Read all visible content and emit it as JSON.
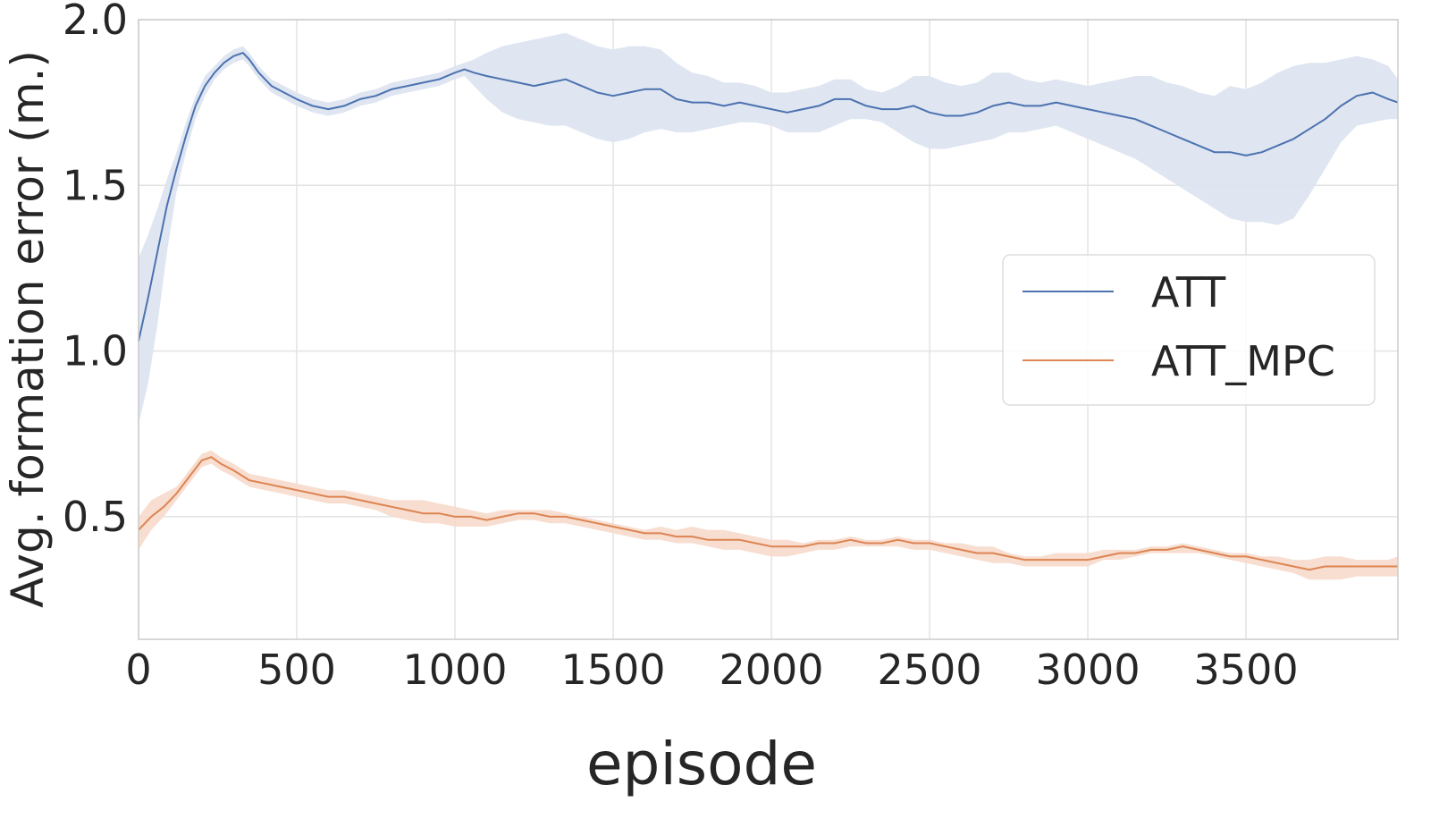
{
  "chart_data": {
    "type": "line",
    "xlabel": "episode",
    "ylabel": "Avg. formation error (m.)",
    "xlim": [
      0,
      3980
    ],
    "ylim": [
      0.13,
      2.0
    ],
    "x_ticks": [
      0,
      500,
      1000,
      1500,
      2000,
      2500,
      3000,
      3500
    ],
    "x_tick_labels": [
      "0",
      "500",
      "1000",
      "1500",
      "2000",
      "2500",
      "3000",
      "3500"
    ],
    "y_ticks": [
      0.5,
      1.0,
      1.5,
      2.0
    ],
    "y_tick_labels": [
      "0.5",
      "1.0",
      "1.5",
      "2.0"
    ],
    "grid": true,
    "legend_position": "right",
    "series": [
      {
        "name": "ATT",
        "color": "#4c72b0",
        "band_color": "#dbe3f0",
        "x": [
          0,
          30,
          60,
          90,
          120,
          150,
          180,
          210,
          240,
          270,
          300,
          330,
          350,
          380,
          420,
          460,
          500,
          550,
          600,
          650,
          700,
          750,
          800,
          850,
          900,
          950,
          1000,
          1030,
          1060,
          1100,
          1150,
          1200,
          1250,
          1300,
          1350,
          1400,
          1450,
          1500,
          1550,
          1600,
          1650,
          1700,
          1750,
          1800,
          1850,
          1900,
          1950,
          2000,
          2050,
          2100,
          2150,
          2200,
          2250,
          2300,
          2350,
          2400,
          2450,
          2500,
          2550,
          2600,
          2650,
          2700,
          2750,
          2800,
          2850,
          2900,
          2950,
          3000,
          3050,
          3100,
          3150,
          3200,
          3250,
          3300,
          3350,
          3400,
          3450,
          3500,
          3550,
          3600,
          3650,
          3700,
          3750,
          3800,
          3850,
          3900,
          3950,
          3980
        ],
        "y": [
          1.03,
          1.16,
          1.3,
          1.44,
          1.55,
          1.65,
          1.74,
          1.8,
          1.84,
          1.87,
          1.89,
          1.9,
          1.88,
          1.84,
          1.8,
          1.78,
          1.76,
          1.74,
          1.73,
          1.74,
          1.76,
          1.77,
          1.79,
          1.8,
          1.81,
          1.82,
          1.84,
          1.85,
          1.84,
          1.83,
          1.82,
          1.81,
          1.8,
          1.81,
          1.82,
          1.8,
          1.78,
          1.77,
          1.78,
          1.79,
          1.79,
          1.76,
          1.75,
          1.75,
          1.74,
          1.75,
          1.74,
          1.73,
          1.72,
          1.73,
          1.74,
          1.76,
          1.76,
          1.74,
          1.73,
          1.73,
          1.74,
          1.72,
          1.71,
          1.71,
          1.72,
          1.74,
          1.75,
          1.74,
          1.74,
          1.75,
          1.74,
          1.73,
          1.72,
          1.71,
          1.7,
          1.68,
          1.66,
          1.64,
          1.62,
          1.6,
          1.6,
          1.59,
          1.6,
          1.62,
          1.64,
          1.67,
          1.7,
          1.74,
          1.77,
          1.78,
          1.76,
          1.75
        ],
        "lower": [
          0.78,
          0.9,
          1.08,
          1.3,
          1.48,
          1.6,
          1.7,
          1.77,
          1.82,
          1.85,
          1.87,
          1.88,
          1.86,
          1.82,
          1.78,
          1.76,
          1.74,
          1.72,
          1.71,
          1.72,
          1.74,
          1.75,
          1.77,
          1.78,
          1.79,
          1.8,
          1.82,
          1.83,
          1.8,
          1.76,
          1.72,
          1.7,
          1.69,
          1.68,
          1.68,
          1.66,
          1.64,
          1.63,
          1.64,
          1.66,
          1.67,
          1.66,
          1.66,
          1.67,
          1.68,
          1.69,
          1.69,
          1.68,
          1.66,
          1.66,
          1.66,
          1.68,
          1.7,
          1.7,
          1.69,
          1.66,
          1.63,
          1.61,
          1.61,
          1.62,
          1.63,
          1.64,
          1.66,
          1.66,
          1.67,
          1.68,
          1.66,
          1.64,
          1.62,
          1.6,
          1.58,
          1.55,
          1.52,
          1.49,
          1.46,
          1.43,
          1.4,
          1.39,
          1.39,
          1.38,
          1.4,
          1.47,
          1.55,
          1.63,
          1.68,
          1.69,
          1.7,
          1.7
        ],
        "upper": [
          1.28,
          1.35,
          1.43,
          1.52,
          1.6,
          1.69,
          1.77,
          1.83,
          1.86,
          1.89,
          1.91,
          1.92,
          1.9,
          1.86,
          1.82,
          1.8,
          1.78,
          1.76,
          1.75,
          1.76,
          1.78,
          1.79,
          1.81,
          1.82,
          1.83,
          1.84,
          1.86,
          1.87,
          1.88,
          1.9,
          1.92,
          1.93,
          1.94,
          1.95,
          1.96,
          1.94,
          1.92,
          1.91,
          1.92,
          1.92,
          1.91,
          1.87,
          1.84,
          1.83,
          1.81,
          1.81,
          1.8,
          1.78,
          1.78,
          1.79,
          1.8,
          1.82,
          1.82,
          1.79,
          1.78,
          1.8,
          1.83,
          1.83,
          1.81,
          1.8,
          1.81,
          1.84,
          1.84,
          1.82,
          1.81,
          1.82,
          1.81,
          1.8,
          1.81,
          1.82,
          1.83,
          1.83,
          1.81,
          1.8,
          1.78,
          1.77,
          1.8,
          1.79,
          1.81,
          1.84,
          1.86,
          1.87,
          1.87,
          1.88,
          1.89,
          1.88,
          1.86,
          1.82
        ]
      },
      {
        "name": "ATT_MPC",
        "color": "#dd8452",
        "band_color": "#f6dacb",
        "x": [
          0,
          40,
          80,
          120,
          160,
          200,
          230,
          260,
          300,
          350,
          400,
          450,
          500,
          550,
          600,
          650,
          700,
          750,
          800,
          850,
          900,
          950,
          1000,
          1050,
          1100,
          1150,
          1200,
          1250,
          1300,
          1350,
          1400,
          1450,
          1500,
          1550,
          1600,
          1650,
          1700,
          1750,
          1800,
          1850,
          1900,
          1950,
          2000,
          2050,
          2100,
          2150,
          2200,
          2250,
          2300,
          2350,
          2400,
          2450,
          2500,
          2550,
          2600,
          2650,
          2700,
          2750,
          2800,
          2850,
          2900,
          2950,
          3000,
          3050,
          3100,
          3150,
          3200,
          3250,
          3300,
          3350,
          3400,
          3450,
          3500,
          3550,
          3600,
          3650,
          3700,
          3750,
          3800,
          3850,
          3900,
          3950,
          3980
        ],
        "y": [
          0.46,
          0.5,
          0.53,
          0.57,
          0.62,
          0.67,
          0.68,
          0.66,
          0.64,
          0.61,
          0.6,
          0.59,
          0.58,
          0.57,
          0.56,
          0.56,
          0.55,
          0.54,
          0.53,
          0.52,
          0.51,
          0.51,
          0.5,
          0.5,
          0.49,
          0.5,
          0.51,
          0.51,
          0.5,
          0.5,
          0.49,
          0.48,
          0.47,
          0.46,
          0.45,
          0.45,
          0.44,
          0.44,
          0.43,
          0.43,
          0.43,
          0.42,
          0.41,
          0.41,
          0.41,
          0.42,
          0.42,
          0.43,
          0.42,
          0.42,
          0.43,
          0.42,
          0.42,
          0.41,
          0.4,
          0.39,
          0.39,
          0.38,
          0.37,
          0.37,
          0.37,
          0.37,
          0.37,
          0.38,
          0.39,
          0.39,
          0.4,
          0.4,
          0.41,
          0.4,
          0.39,
          0.38,
          0.38,
          0.37,
          0.36,
          0.35,
          0.34,
          0.35,
          0.35,
          0.35,
          0.35,
          0.35,
          0.35
        ],
        "lower": [
          0.4,
          0.46,
          0.5,
          0.55,
          0.6,
          0.65,
          0.66,
          0.64,
          0.62,
          0.59,
          0.58,
          0.57,
          0.56,
          0.55,
          0.54,
          0.54,
          0.53,
          0.52,
          0.5,
          0.49,
          0.48,
          0.48,
          0.47,
          0.47,
          0.47,
          0.48,
          0.49,
          0.49,
          0.48,
          0.48,
          0.47,
          0.46,
          0.45,
          0.44,
          0.43,
          0.43,
          0.42,
          0.42,
          0.41,
          0.4,
          0.4,
          0.39,
          0.38,
          0.38,
          0.39,
          0.4,
          0.4,
          0.41,
          0.41,
          0.41,
          0.41,
          0.4,
          0.4,
          0.39,
          0.38,
          0.37,
          0.36,
          0.36,
          0.35,
          0.35,
          0.35,
          0.35,
          0.35,
          0.37,
          0.37,
          0.38,
          0.39,
          0.39,
          0.39,
          0.39,
          0.38,
          0.37,
          0.36,
          0.35,
          0.34,
          0.33,
          0.31,
          0.31,
          0.31,
          0.32,
          0.32,
          0.32,
          0.32
        ],
        "upper": [
          0.5,
          0.55,
          0.57,
          0.59,
          0.64,
          0.69,
          0.7,
          0.68,
          0.66,
          0.63,
          0.62,
          0.61,
          0.6,
          0.59,
          0.58,
          0.58,
          0.57,
          0.56,
          0.55,
          0.55,
          0.55,
          0.54,
          0.53,
          0.52,
          0.51,
          0.52,
          0.52,
          0.52,
          0.52,
          0.51,
          0.5,
          0.49,
          0.48,
          0.47,
          0.46,
          0.47,
          0.46,
          0.47,
          0.46,
          0.46,
          0.45,
          0.44,
          0.43,
          0.43,
          0.42,
          0.43,
          0.43,
          0.44,
          0.43,
          0.43,
          0.44,
          0.43,
          0.43,
          0.42,
          0.42,
          0.41,
          0.41,
          0.39,
          0.38,
          0.38,
          0.39,
          0.39,
          0.39,
          0.4,
          0.4,
          0.4,
          0.41,
          0.41,
          0.42,
          0.41,
          0.4,
          0.39,
          0.39,
          0.38,
          0.38,
          0.37,
          0.37,
          0.38,
          0.38,
          0.37,
          0.37,
          0.37,
          0.38
        ]
      }
    ]
  }
}
